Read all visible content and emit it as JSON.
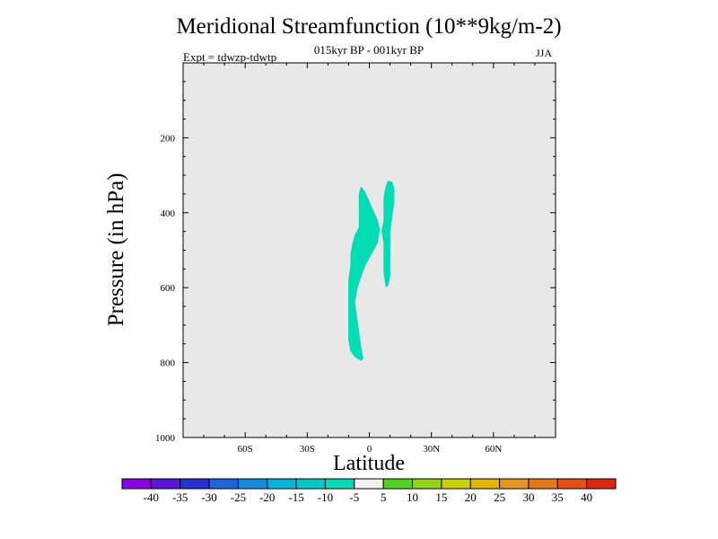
{
  "chart_data": {
    "type": "contour",
    "title": "Meridional Streamfunction (10**9kg/m-2)",
    "subtitle": "015kyr BP - 001kyr BP",
    "annotation_left": "Expt = tdwzp-tdwtp",
    "annotation_right": "JJA",
    "xlabel": "Latitude",
    "ylabel": "Pressure (in hPa)",
    "xlim": [
      -90,
      90
    ],
    "ylim": [
      1000,
      0
    ],
    "xticks": [
      {
        "value": -60,
        "label": "60S"
      },
      {
        "value": -30,
        "label": "30S"
      },
      {
        "value": 0,
        "label": "0"
      },
      {
        "value": 30,
        "label": "30N"
      },
      {
        "value": 60,
        "label": "60N"
      }
    ],
    "yticks": [
      {
        "value": 200,
        "label": "200"
      },
      {
        "value": 400,
        "label": "400"
      },
      {
        "value": 600,
        "label": "600"
      },
      {
        "value": 800,
        "label": "800"
      },
      {
        "value": 1000,
        "label": "1000"
      }
    ],
    "background_color": "#e8e8e8",
    "regions": [
      {
        "level": "-10 to -5",
        "color": "#00dcb4",
        "points": [
          [
            -4,
            330
          ],
          [
            -2,
            345
          ],
          [
            0,
            370
          ],
          [
            2,
            395
          ],
          [
            4,
            420
          ],
          [
            5,
            445
          ],
          [
            4,
            480
          ],
          [
            1,
            510
          ],
          [
            -2,
            540
          ],
          [
            -4,
            570
          ],
          [
            -6,
            605
          ],
          [
            -7,
            640
          ],
          [
            -6,
            680
          ],
          [
            -5,
            720
          ],
          [
            -4,
            760
          ],
          [
            -3,
            790
          ],
          [
            -4,
            795
          ],
          [
            -7,
            785
          ],
          [
            -9,
            770
          ],
          [
            -10,
            740
          ],
          [
            -10,
            700
          ],
          [
            -10,
            660
          ],
          [
            -10,
            620
          ],
          [
            -10,
            580
          ],
          [
            -9,
            540
          ],
          [
            -9,
            510
          ],
          [
            -8,
            480
          ],
          [
            -7,
            460
          ],
          [
            -5,
            440
          ],
          [
            -5,
            410
          ],
          [
            -5,
            380
          ],
          [
            -5,
            350
          ]
        ]
      },
      {
        "level": "-10 to -5",
        "color": "#00dcb4",
        "points": [
          [
            9,
            315
          ],
          [
            11,
            318
          ],
          [
            12,
            335
          ],
          [
            12,
            370
          ],
          [
            11,
            410
          ],
          [
            10,
            450
          ],
          [
            10,
            490
          ],
          [
            10,
            530
          ],
          [
            10,
            570
          ],
          [
            9,
            595
          ],
          [
            8,
            598
          ],
          [
            7,
            560
          ],
          [
            7,
            520
          ],
          [
            7,
            480
          ],
          [
            6,
            450
          ],
          [
            7,
            420
          ],
          [
            7,
            390
          ],
          [
            7,
            360
          ],
          [
            8,
            330
          ]
        ]
      }
    ],
    "colorbar": {
      "labels": [
        "-40",
        "-35",
        "-30",
        "-25",
        "-20",
        "-15",
        "-10",
        "-5",
        "5",
        "10",
        "15",
        "20",
        "25",
        "30",
        "35",
        "40"
      ],
      "colors": [
        "#8c00e6",
        "#5a14dc",
        "#2832d2",
        "#1e64dc",
        "#148cdc",
        "#00b4dc",
        "#00c8c8",
        "#00dcb4",
        "#f0f0f0",
        "#50d21e",
        "#96d214",
        "#c8d200",
        "#e6b400",
        "#e6961e",
        "#e67814",
        "#e65014",
        "#dc280a"
      ]
    }
  }
}
